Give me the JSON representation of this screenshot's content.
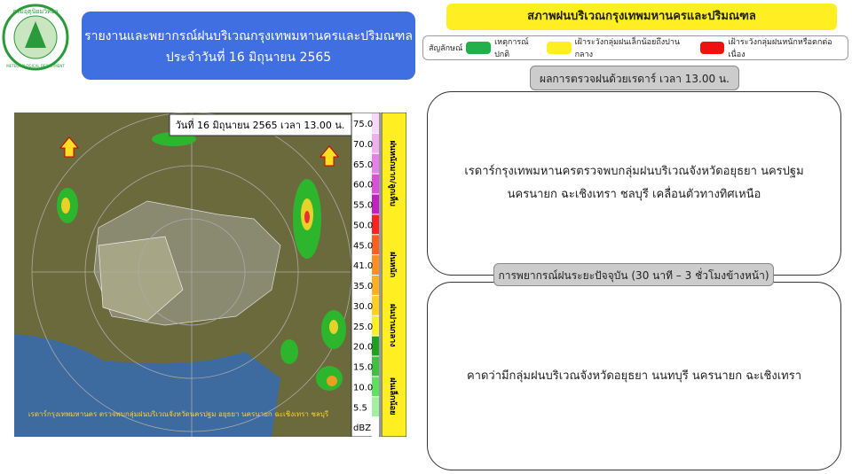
{
  "header": {
    "logo_th": "กรมอุตุนิยมวิทยา",
    "logo_en": "METEOROLOGICAL DEPARTMENT",
    "title": "รายงานและพยากรณ์ฝนบริเวณกรุงเทพมหานครและปริมณฑล",
    "date": "ประจำวันที่ 16 มิถุนายน 2565"
  },
  "map": {
    "timestamp": "วันที่ 16 มิถุนายน 2565 เวลา 13.00 น.",
    "caption": "เรดาร์กรุงเทพมหานคร ตรวจพบกลุ่มฝนบริเวณจังหวัดนครปฐม อยุธยา นครนายก ฉะเชิงเทรา ชลบุรี",
    "scale": [
      "75.0",
      "70.0",
      "65.0",
      "60.0",
      "55.0",
      "50.0",
      "45.0",
      "41.0",
      "35.0",
      "30.0",
      "25.0",
      "20.0",
      "15.0",
      "10.0",
      "5.5",
      "dBZ"
    ],
    "scale_groups": [
      "ฝนหนักมาก/ลูกเห็บ",
      "ฝนหนัก",
      "ฝนปานกลาง",
      "ฝนเล็กน้อย"
    ]
  },
  "status": {
    "title": "สภาพฝนบริเวณกรุงเทพมหานครและปริมณฑล",
    "legend_label": "สัญลักษณ์",
    "legend": [
      "เหตุการณ์ปกติ",
      "เฝ้าระวังกลุ่มฝนเล็กน้อยถึงปานกลาง",
      "เฝ้าระวังกลุ่มฝนหนักหรือตกต่อเนื่อง"
    ]
  },
  "sections": [
    {
      "label": "ผลการตรวจฝนด้วยเรดาร์ เวลา 13.00 น.",
      "text": "เรดาร์กรุงเทพมหานครตรวจพบกลุ่มฝนบริเวณจังหวัดอยุธยา นครปฐม นครนายก ฉะเชิงเทรา ชลบุรี เคลื่อนตัวทางทิศเหนือ"
    },
    {
      "label": "การพยากรณ์ฝนระยะปัจจุบัน (30 นาที – 3 ชั่วโมงข้างหน้า)",
      "text": "คาดว่ามีกลุ่มฝนบริเวณจังหวัดอยุธยา นนทบุรี นครนายก ฉะเชิงเทรา"
    }
  ]
}
